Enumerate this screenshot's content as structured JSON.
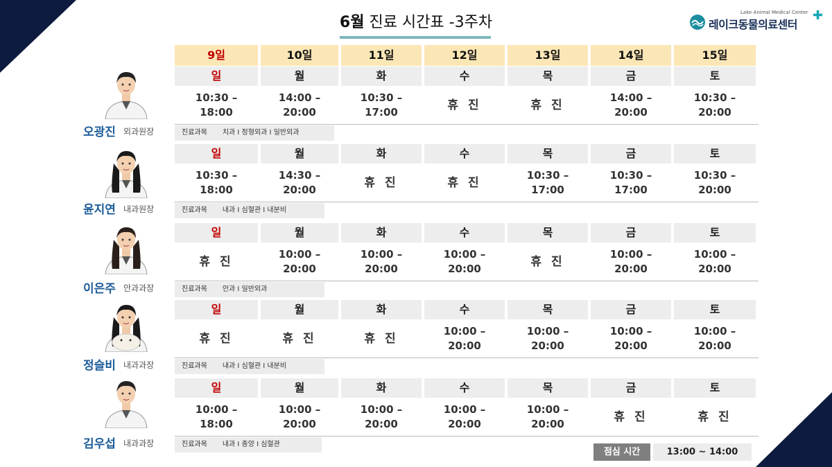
{
  "header": {
    "month": "6월",
    "title_rest": " 진료 시간표 -3주차"
  },
  "logo": {
    "sub": "Lake Animal Medical Center",
    "name": "레이크동물의료센터",
    "plus": "✚"
  },
  "dates": [
    "9일",
    "10일",
    "11일",
    "12일",
    "13일",
    "14일",
    "15일"
  ],
  "weekdays": [
    "일",
    "월",
    "화",
    "수",
    "목",
    "금",
    "토"
  ],
  "dept_label": "진료과목",
  "off_text": "휴 진",
  "doctors": [
    {
      "name": "오광진",
      "role": "외과원장",
      "dept": "치과 I 정형외과 I 일반외과",
      "hours": [
        "10:30 –\n18:00",
        "14:00 –\n20:00",
        "10:30 –\n17:00",
        "휴 진",
        "휴 진",
        "14:00 –\n20:00",
        "10:30 –\n20:00"
      ]
    },
    {
      "name": "윤지연",
      "role": "내과원장",
      "dept": "내과 I 심혈관 I 내분비",
      "hours": [
        "10:30 –\n18:00",
        "14:30 –\n20:00",
        "휴 진",
        "휴 진",
        "10:30 –\n17:00",
        "10:30 –\n17:00",
        "10:30 –\n20:00"
      ]
    },
    {
      "name": "이은주",
      "role": "안과과장",
      "dept": "안과 I 일반외과",
      "hours": [
        "휴 진",
        "10:00 –\n20:00",
        "10:00 –\n20:00",
        "10:00 –\n20:00",
        "휴 진",
        "10:00 –\n20:00",
        "10:00 –\n20:00"
      ]
    },
    {
      "name": "정슬비",
      "role": "내과과장",
      "dept": "내과 I 심혈관 I 내분비",
      "hours": [
        "휴 진",
        "휴 진",
        "휴 진",
        "10:00 –\n20:00",
        "10:00 –\n20:00",
        "10:00 –\n20:00",
        "10:00 –\n20:00"
      ]
    },
    {
      "name": "김우섭",
      "role": "내과과장",
      "dept": "내과 I 종양 I 심혈관",
      "hours": [
        "10:00 –\n18:00",
        "10:00 –\n20:00",
        "10:00 –\n20:00",
        "10:00 –\n20:00",
        "10:00 –\n20:00",
        "휴 진",
        "휴 진"
      ]
    }
  ],
  "lunch": {
    "label": "점심 시간",
    "time": "13:00 ~ 14:00"
  }
}
